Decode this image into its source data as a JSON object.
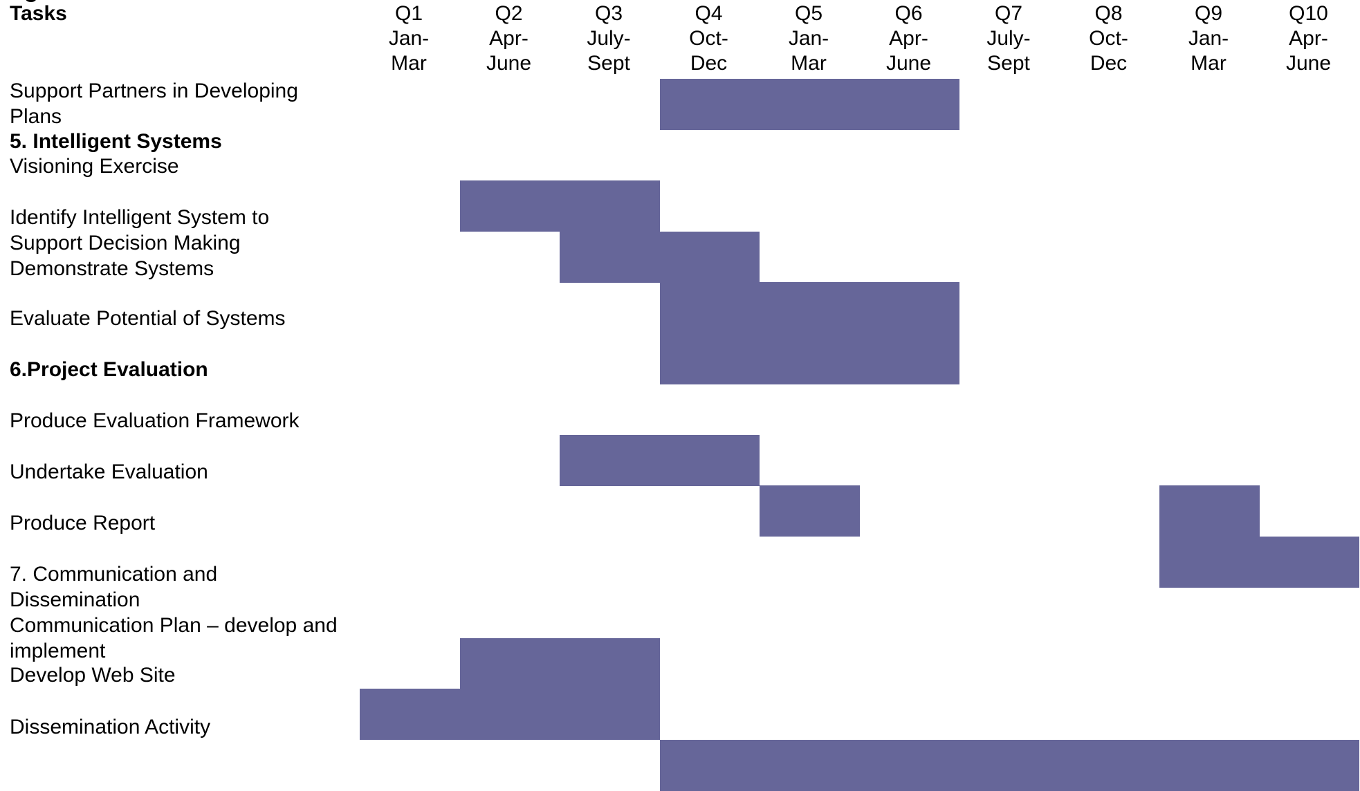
{
  "header": {
    "clipped_title": "ng",
    "tasks_label": "Tasks"
  },
  "quarters": [
    {
      "q": "Q1",
      "m1": "Jan-",
      "m2": "Mar"
    },
    {
      "q": "Q2",
      "m1": "Apr-",
      "m2": "June"
    },
    {
      "q": "Q3",
      "m1": "July-",
      "m2": "Sept"
    },
    {
      "q": "Q4",
      "m1": "Oct-",
      "m2": "Dec"
    },
    {
      "q": "Q5",
      "m1": "Jan-",
      "m2": "Mar"
    },
    {
      "q": "Q6",
      "m1": "Apr-",
      "m2": "June"
    },
    {
      "q": "Q7",
      "m1": "July-",
      "m2": "Sept"
    },
    {
      "q": "Q8",
      "m1": "Oct-",
      "m2": "Dec"
    },
    {
      "q": "Q9",
      "m1": "Jan-",
      "m2": "Mar"
    },
    {
      "q": "Q10",
      "m1": "Apr-",
      "m2": "June"
    }
  ],
  "rows": [
    {
      "label": "Support Partners in Developing Plans",
      "bold": false,
      "bar": [
        4,
        6
      ]
    },
    {
      "label": "5. Intelligent Systems",
      "bold": true,
      "bar": null
    },
    {
      "label": "Visioning Exercise",
      "bold": false,
      "bar": [
        2,
        3
      ]
    },
    {
      "label": "Identify Intelligent System to Support Decision Making",
      "bold": false,
      "bar": [
        3,
        4
      ]
    },
    {
      "label": "Demonstrate Systems",
      "bold": false,
      "bar": [
        4,
        6
      ]
    },
    {
      "label": "Evaluate Potential of Systems",
      "bold": false,
      "bar": [
        4,
        6
      ]
    },
    {
      "label": "6.Project Evaluation",
      "bold": true,
      "bar": null
    },
    {
      "label": "Produce Evaluation Framework",
      "bold": false,
      "bar": [
        3,
        4
      ]
    },
    {
      "label": "Undertake Evaluation",
      "bold": false,
      "bar": [
        5,
        5
      ],
      "bar2": [
        9,
        9
      ]
    },
    {
      "label": "Produce Report",
      "bold": false,
      "bar": [
        9,
        10
      ]
    },
    {
      "label": "7. Communication and Dissemination",
      "bold": false,
      "bar": null
    },
    {
      "label": "Communication Plan – develop and implement",
      "bold": false,
      "bar": [
        2,
        3
      ]
    },
    {
      "label": "Develop Web Site",
      "bold": false,
      "bar": [
        1,
        3
      ]
    },
    {
      "label": "Dissemination Activity",
      "bold": false,
      "bar": [
        4,
        10
      ]
    }
  ],
  "colors": {
    "bar": "#666699"
  }
}
